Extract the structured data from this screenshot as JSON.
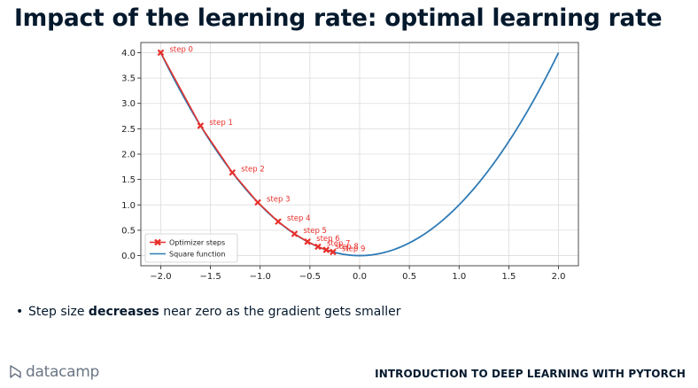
{
  "slide": {
    "title": "Impact of the learning rate: optimal learning rate",
    "bullet_prefix": "Step size ",
    "bullet_bold": "decreases",
    "bullet_suffix": " near zero as the gradient gets smaller"
  },
  "footer": {
    "logo_text": "datacamp",
    "course_title": "INTRODUCTION TO DEEP LEARNING WITH PYTORCH"
  },
  "chart_data": {
    "type": "line",
    "title": "",
    "xlabel": "",
    "ylabel": "",
    "xlim": [
      -2.2,
      2.2
    ],
    "ylim": [
      -0.2,
      4.2
    ],
    "grid": true,
    "legend_position": "lower-left",
    "x_ticks": [
      -2.0,
      -1.5,
      -1.0,
      -0.5,
      0.0,
      0.5,
      1.0,
      1.5,
      2.0
    ],
    "x_tick_labels": [
      "−2.0",
      "−1.5",
      "−1.0",
      "−0.5",
      "0.0",
      "0.5",
      "1.0",
      "1.5",
      "2.0"
    ],
    "y_ticks": [
      0.0,
      0.5,
      1.0,
      1.5,
      2.0,
      2.5,
      3.0,
      3.5,
      4.0
    ],
    "y_tick_labels": [
      "0.0",
      "0.5",
      "1.0",
      "1.5",
      "2.0",
      "2.5",
      "3.0",
      "3.5",
      "4.0"
    ],
    "series": [
      {
        "name": "Optimizer steps",
        "color": "#e8302b",
        "marker": "x",
        "x": [
          -2.0,
          -1.6,
          -1.28,
          -1.024,
          -0.819,
          -0.655,
          -0.524,
          -0.419,
          -0.336,
          -0.268
        ],
        "y": [
          4.0,
          2.56,
          1.638,
          1.049,
          0.671,
          0.429,
          0.275,
          0.176,
          0.113,
          0.072
        ],
        "labels": [
          "step 0",
          "step 1",
          "step 2",
          "step 3",
          "step 4",
          "step 5",
          "step 6",
          "step 7",
          "step 8",
          "step 9"
        ]
      },
      {
        "name": "Square function",
        "color": "#2f7bb6",
        "function": "y = x^2",
        "x_range": [
          -2.0,
          2.0
        ]
      }
    ]
  }
}
